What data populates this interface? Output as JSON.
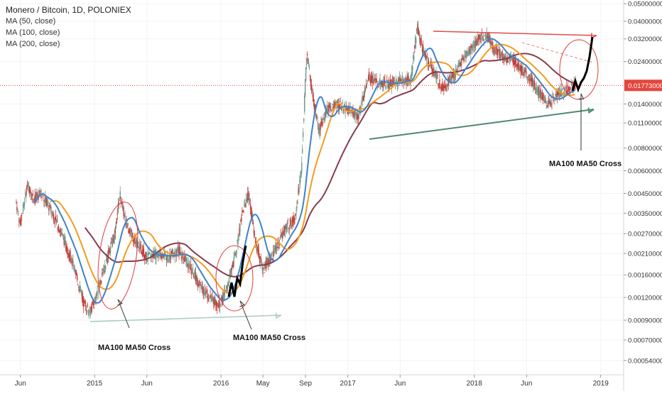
{
  "legend": {
    "title": "Monero / Bitcoin, 1D, POLONIEX",
    "ma50": "MA (50, close)",
    "ma100": "MA (100, close)",
    "ma200": "MA (200, close)"
  },
  "colors": {
    "candle_up": "#6f9a8c",
    "candle_down": "#c2403a",
    "ma50": "#3f82c9",
    "ma100": "#f39c1f",
    "ma200": "#8a3b4c",
    "price_line": "#e23b3b",
    "price_badge": "#e4463d",
    "resistance_line": "#e54a4a",
    "support_line": "#4f8a6d",
    "lower_arrow": "#a9cbc3",
    "ellipse": "#e23b3b",
    "projection": "#000000"
  },
  "annotations": {
    "cross1": "MA100 MA50 Cross",
    "cross2": "MA100 MA50 Cross",
    "cross3": "MA100 MA50 Cross"
  },
  "chart_data": {
    "type": "candlestick",
    "title": "Monero / Bitcoin, 1D, POLONIEX",
    "y_scale": "log",
    "ylim": [
      0.00045,
      0.0524
    ],
    "y_ticks": [
      "0.05000000",
      "0.04000000",
      "0.03200000",
      "0.02400000",
      "0.01400000",
      "0.01100000",
      "0.00800000",
      "0.00600000",
      "0.00450000",
      "0.00350000",
      "0.00270000",
      "0.00210000",
      "0.00160000",
      "0.00120000",
      "0.00090000",
      "0.00070000",
      "0.00054000"
    ],
    "x_ticks": [
      "Jun",
      "2015",
      "Jun",
      "2016",
      "May",
      "Sep",
      "2017",
      "Jun",
      "2018",
      "Jun",
      "2019"
    ],
    "current_price": "0.01773000",
    "close_series": [
      [
        "2014-05-20",
        0.004
      ],
      [
        "2014-06-01",
        0.003
      ],
      [
        "2014-06-20",
        0.005
      ],
      [
        "2014-07-10",
        0.0042
      ],
      [
        "2014-08-01",
        0.0045
      ],
      [
        "2014-09-01",
        0.0035
      ],
      [
        "2014-10-01",
        0.0026
      ],
      [
        "2014-11-01",
        0.0018
      ],
      [
        "2014-12-01",
        0.0011
      ],
      [
        "2014-12-20",
        0.001
      ],
      [
        "2015-01-15",
        0.0014
      ],
      [
        "2015-02-10",
        0.0021
      ],
      [
        "2015-03-01",
        0.0027
      ],
      [
        "2015-03-15",
        0.0045
      ],
      [
        "2015-04-01",
        0.0031
      ],
      [
        "2015-05-01",
        0.0024
      ],
      [
        "2015-06-01",
        0.002
      ],
      [
        "2015-07-01",
        0.0021
      ],
      [
        "2015-08-01",
        0.002
      ],
      [
        "2015-09-01",
        0.0022
      ],
      [
        "2015-10-01",
        0.0018
      ],
      [
        "2015-11-01",
        0.0014
      ],
      [
        "2015-12-01",
        0.0012
      ],
      [
        "2015-12-25",
        0.0011
      ],
      [
        "2016-01-15",
        0.0013
      ],
      [
        "2016-02-10",
        0.002
      ],
      [
        "2016-03-01",
        0.0034
      ],
      [
        "2016-03-20",
        0.0045
      ],
      [
        "2016-04-10",
        0.0024
      ],
      [
        "2016-05-01",
        0.0017
      ],
      [
        "2016-06-01",
        0.0021
      ],
      [
        "2016-07-01",
        0.0028
      ],
      [
        "2016-08-01",
        0.0033
      ],
      [
        "2016-08-20",
        0.006
      ],
      [
        "2016-09-01",
        0.02
      ],
      [
        "2016-09-05",
        0.027
      ],
      [
        "2016-09-20",
        0.016
      ],
      [
        "2016-10-10",
        0.01
      ],
      [
        "2016-11-01",
        0.013
      ],
      [
        "2016-12-01",
        0.014
      ],
      [
        "2017-01-01",
        0.013
      ],
      [
        "2017-02-01",
        0.012
      ],
      [
        "2017-03-01",
        0.02
      ],
      [
        "2017-04-01",
        0.018
      ],
      [
        "2017-05-01",
        0.018
      ],
      [
        "2017-06-01",
        0.019
      ],
      [
        "2017-07-01",
        0.019
      ],
      [
        "2017-07-20",
        0.037
      ],
      [
        "2017-08-10",
        0.026
      ],
      [
        "2017-09-01",
        0.022
      ],
      [
        "2017-10-01",
        0.017
      ],
      [
        "2017-11-01",
        0.02
      ],
      [
        "2017-12-01",
        0.025
      ],
      [
        "2018-01-01",
        0.03
      ],
      [
        "2018-01-20",
        0.033
      ],
      [
        "2018-02-10",
        0.033
      ],
      [
        "2018-03-01",
        0.028
      ],
      [
        "2018-04-01",
        0.025
      ],
      [
        "2018-05-01",
        0.024
      ],
      [
        "2018-06-01",
        0.02
      ],
      [
        "2018-07-01",
        0.017
      ],
      [
        "2018-08-01",
        0.014
      ],
      [
        "2018-09-01",
        0.016
      ],
      [
        "2018-10-01",
        0.017
      ],
      [
        "2018-10-20",
        0.0177
      ]
    ]
  }
}
